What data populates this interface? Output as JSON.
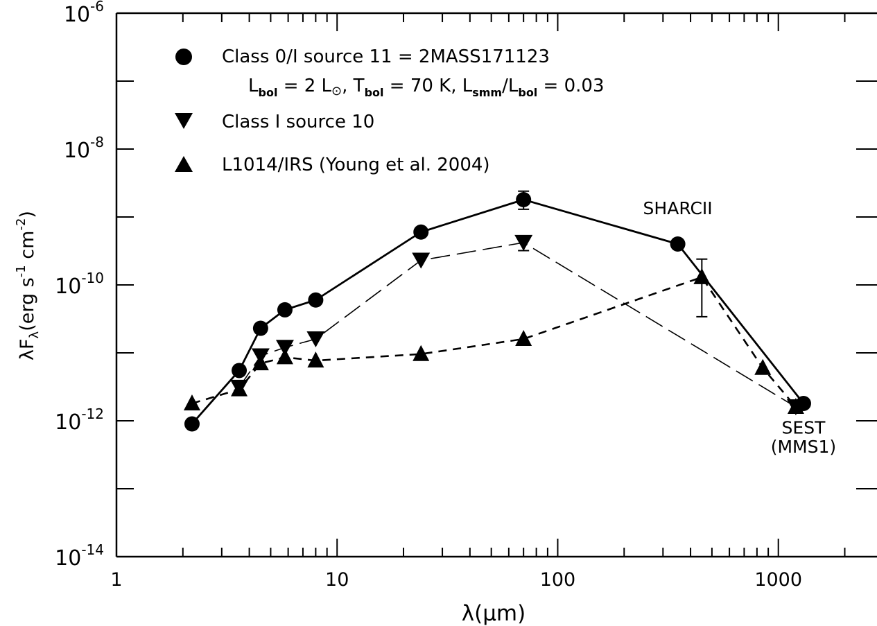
{
  "chart_data": {
    "type": "scatter",
    "xscale": "log",
    "yscale": "log",
    "xlim": [
      1,
      2800
    ],
    "ylim": [
      1e-14,
      1e-06
    ],
    "xlabel": "λ(μm)",
    "ylabel_parts": {
      "main": "λF",
      "sub": "λ",
      "rest1": "(erg s",
      "sup1": "-1",
      "rest2": " cm",
      "sup2": "-2",
      "rest3": ")"
    },
    "x_ticks": [
      {
        "value": 1,
        "label": "1"
      },
      {
        "value": 10,
        "label": "10"
      },
      {
        "value": 100,
        "label": "100"
      },
      {
        "value": 1000,
        "label": "1000"
      }
    ],
    "y_ticks": [
      {
        "value": 1e-06,
        "base": "10",
        "exp": "-6"
      },
      {
        "value": 1e-08,
        "base": "10",
        "exp": "-8"
      },
      {
        "value": 1e-10,
        "base": "10",
        "exp": "-10"
      },
      {
        "value": 1e-12,
        "base": "10",
        "exp": "-12"
      },
      {
        "value": 1e-14,
        "base": "10",
        "exp": "-14"
      }
    ],
    "legend": {
      "placement": "top-left",
      "entries": [
        {
          "marker": "circle",
          "label": "Class 0/I source 11 = 2MASS171123"
        },
        {
          "marker": "triangle-down",
          "label": "Class I source 10"
        },
        {
          "marker": "triangle-up",
          "label": "L1014/IRS (Young et al. 2004)"
        }
      ],
      "info_line": {
        "l": "L",
        "bol1": "bol",
        "eq1": " = 2 L",
        "sun": "⊙",
        "t": ",  T",
        "bol2": "bol",
        "eq2": " = 70 K,  L",
        "smm": "smm",
        "slash": "/L",
        "bol3": "bol",
        "eq3": " = 0.03"
      }
    },
    "annotations": [
      {
        "text": "SHARCII",
        "x": 350,
        "y": 1.1e-09
      },
      {
        "text": "SEST",
        "x": 1300,
        "y": 6.5e-13
      },
      {
        "text": "(MMS1)",
        "x": 1300,
        "y": 3.4e-13
      }
    ],
    "series": [
      {
        "name": "Class 0/I source 11 = 2MASS171123",
        "marker": "circle",
        "line": "solid",
        "points": [
          {
            "x": 2.2,
            "y": 9e-13
          },
          {
            "x": 3.6,
            "y": 5.5e-12
          },
          {
            "x": 4.5,
            "y": 2.3e-11
          },
          {
            "x": 5.8,
            "y": 4.3e-11
          },
          {
            "x": 8.0,
            "y": 6e-11
          },
          {
            "x": 24,
            "y": 6e-10
          },
          {
            "x": 70,
            "y": 1.8e-09,
            "err": [
              1.3e-09,
              2.4e-09
            ]
          },
          {
            "x": 350,
            "y": 4e-10
          },
          {
            "x": 1300,
            "y": 1.8e-12
          }
        ]
      },
      {
        "name": "Class I source 10",
        "marker": "triangle-down",
        "line": "long-dash",
        "points": [
          {
            "x": 3.6,
            "y": 3.1e-12
          },
          {
            "x": 4.5,
            "y": 9e-12
          },
          {
            "x": 5.8,
            "y": 1.2e-11
          },
          {
            "x": 8.0,
            "y": 1.6e-11
          },
          {
            "x": 24,
            "y": 2.3e-10
          },
          {
            "x": 70,
            "y": 4.2e-10,
            "err": [
              3.2e-10,
              5e-10
            ]
          },
          {
            "x": 1200,
            "y": 1.6e-12
          }
        ]
      },
      {
        "name": "L1014/IRS (Young et al. 2004)",
        "marker": "triangle-up",
        "line": "short-dash",
        "points": [
          {
            "x": 2.2,
            "y": 1.8e-12
          },
          {
            "x": 3.6,
            "y": 2.9e-12
          },
          {
            "x": 4.5,
            "y": 7e-12
          },
          {
            "x": 5.8,
            "y": 8.6e-12
          },
          {
            "x": 8.0,
            "y": 7.7e-12
          },
          {
            "x": 24,
            "y": 9.6e-12
          },
          {
            "x": 70,
            "y": 1.6e-11
          },
          {
            "x": 450,
            "y": 1.3e-10,
            "err": [
              3.4e-11,
              2.4e-10
            ]
          },
          {
            "x": 850,
            "y": 6e-12
          },
          {
            "x": 1200,
            "y": 1.6e-12
          }
        ]
      }
    ]
  }
}
